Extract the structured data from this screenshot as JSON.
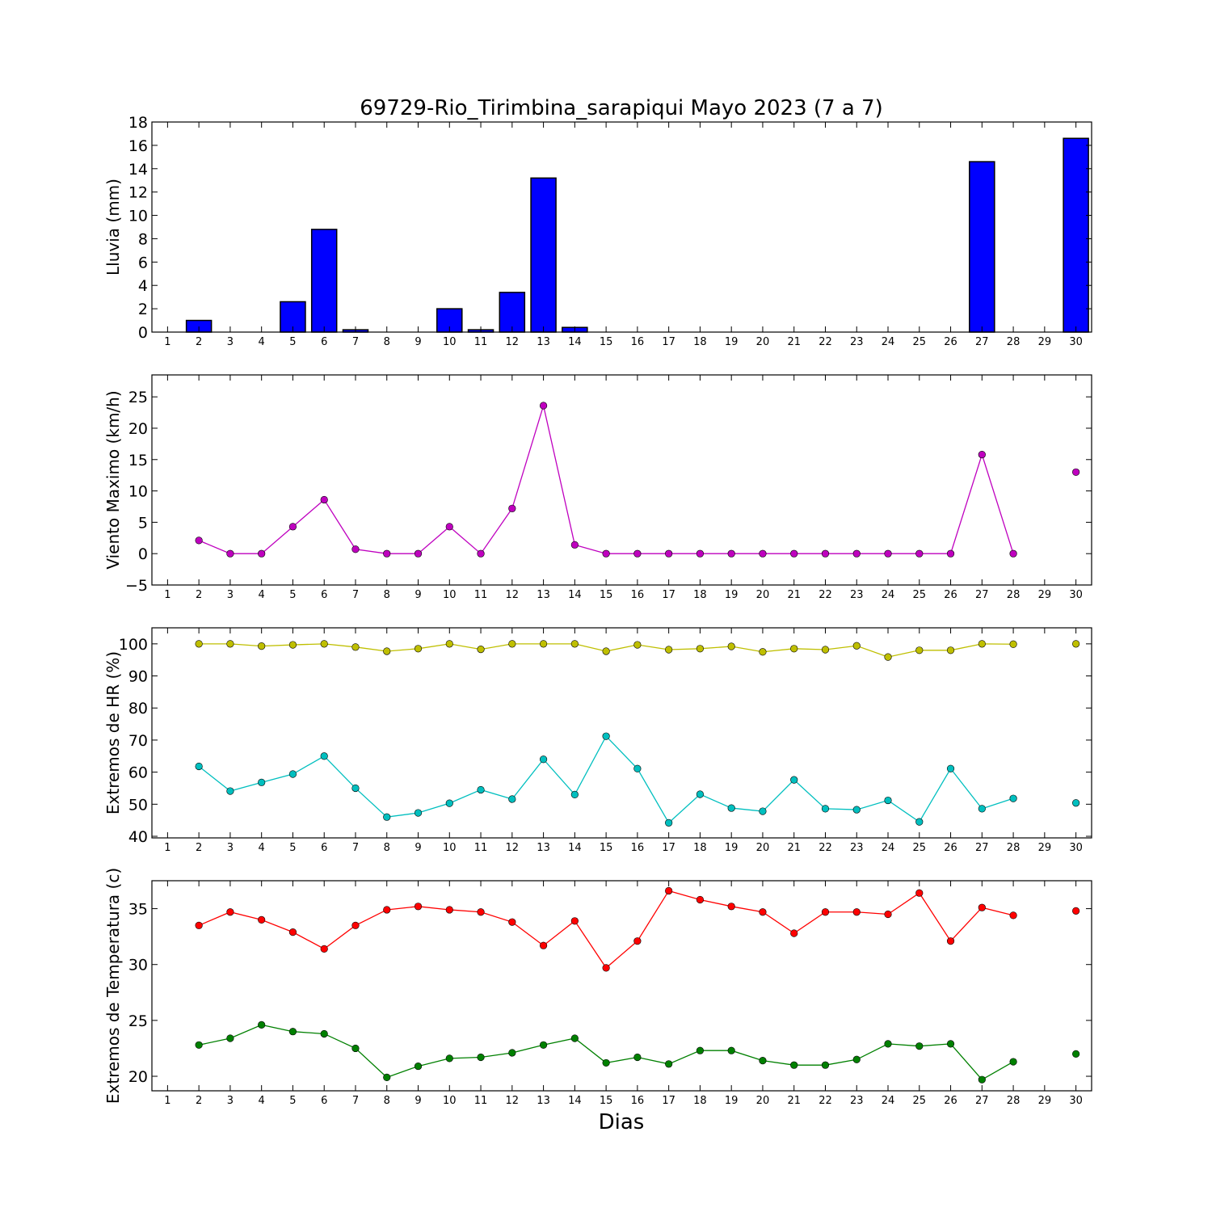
{
  "chart_data": {
    "title": "69729-Rio_Tirimbina_sarapiqui Mayo 2023  (7 a 7)",
    "xlabel": "Dias",
    "days": [
      1,
      2,
      3,
      4,
      5,
      6,
      7,
      8,
      9,
      10,
      11,
      12,
      13,
      14,
      15,
      16,
      17,
      18,
      19,
      20,
      21,
      22,
      23,
      24,
      25,
      26,
      27,
      28,
      29,
      30
    ],
    "xlim": [
      0.5,
      30.5
    ],
    "panels": [
      {
        "type": "bar",
        "ylabel": "Lluvia (mm)",
        "ylim": [
          0,
          18
        ],
        "yticks": [
          0,
          2,
          4,
          6,
          8,
          10,
          12,
          14,
          16,
          18
        ],
        "series": [
          {
            "color": "#0000ff",
            "values": [
              null,
              1.0,
              0,
              0,
              2.6,
              8.8,
              0.2,
              0,
              0,
              2.0,
              0.2,
              3.4,
              13.2,
              0.4,
              0,
              0,
              0,
              0,
              0,
              0,
              0,
              0,
              0,
              0,
              0,
              0,
              14.6,
              0,
              0,
              16.6
            ]
          }
        ]
      },
      {
        "type": "line",
        "ylabel": "Viento Maximo (km/h)",
        "ylim": [
          -5,
          28.5
        ],
        "yticks": [
          -5,
          0,
          5,
          10,
          15,
          20,
          25
        ],
        "series": [
          {
            "color": "#bf00bf",
            "values": [
              null,
              2.1,
              0,
              0,
              4.3,
              8.6,
              0.7,
              0,
              0,
              4.3,
              0,
              7.2,
              23.6,
              1.4,
              0,
              0,
              0,
              0,
              0,
              0,
              0,
              0,
              0,
              0,
              0,
              0,
              15.8,
              0,
              null,
              13.0
            ]
          }
        ]
      },
      {
        "type": "line",
        "ylabel": "Extremos de HR (%)",
        "ylim": [
          39.5,
          105
        ],
        "yticks": [
          40,
          50,
          60,
          70,
          80,
          90,
          100
        ],
        "series": [
          {
            "color": "#bfbf00",
            "values": [
              null,
              100,
              100,
              99.3,
              99.7,
              100,
              99.0,
              97.7,
              98.5,
              100,
              98.3,
              100,
              100,
              100,
              97.7,
              99.7,
              98.2,
              98.5,
              99.2,
              97.5,
              98.5,
              98.2,
              99.4,
              95.9,
              98.0,
              98.0,
              100,
              99.9,
              null,
              100
            ]
          },
          {
            "color": "#00bfbf",
            "values": [
              null,
              61.8,
              54.1,
              56.8,
              59.4,
              65.0,
              55.0,
              46.0,
              47.3,
              50.3,
              54.5,
              51.6,
              64.0,
              53.0,
              71.2,
              61.1,
              44.2,
              53.1,
              48.8,
              47.8,
              57.6,
              48.6,
              48.3,
              51.2,
              44.5,
              61.1,
              48.6,
              51.8,
              null,
              50.4
            ]
          }
        ]
      },
      {
        "type": "line",
        "ylabel": "Extremos de Temperatura (c)",
        "ylim": [
          18.7,
          37.5
        ],
        "yticks": [
          20,
          25,
          30,
          35
        ],
        "series": [
          {
            "color": "#ff0000",
            "values": [
              null,
              33.5,
              34.7,
              34.0,
              32.9,
              31.4,
              33.5,
              34.9,
              35.2,
              34.9,
              34.7,
              33.8,
              31.7,
              33.9,
              29.7,
              32.1,
              36.6,
              35.8,
              35.2,
              34.7,
              32.8,
              34.7,
              34.7,
              34.5,
              36.4,
              32.1,
              35.1,
              34.4,
              null,
              34.8
            ]
          },
          {
            "color": "#008000",
            "values": [
              null,
              22.8,
              23.4,
              24.6,
              24.0,
              23.8,
              22.5,
              19.9,
              20.9,
              21.6,
              21.7,
              22.1,
              22.8,
              23.4,
              21.2,
              21.7,
              21.1,
              22.3,
              22.3,
              21.4,
              21.0,
              21.0,
              21.5,
              22.9,
              22.7,
              22.9,
              19.7,
              21.3,
              null,
              22.0
            ]
          }
        ]
      }
    ]
  }
}
